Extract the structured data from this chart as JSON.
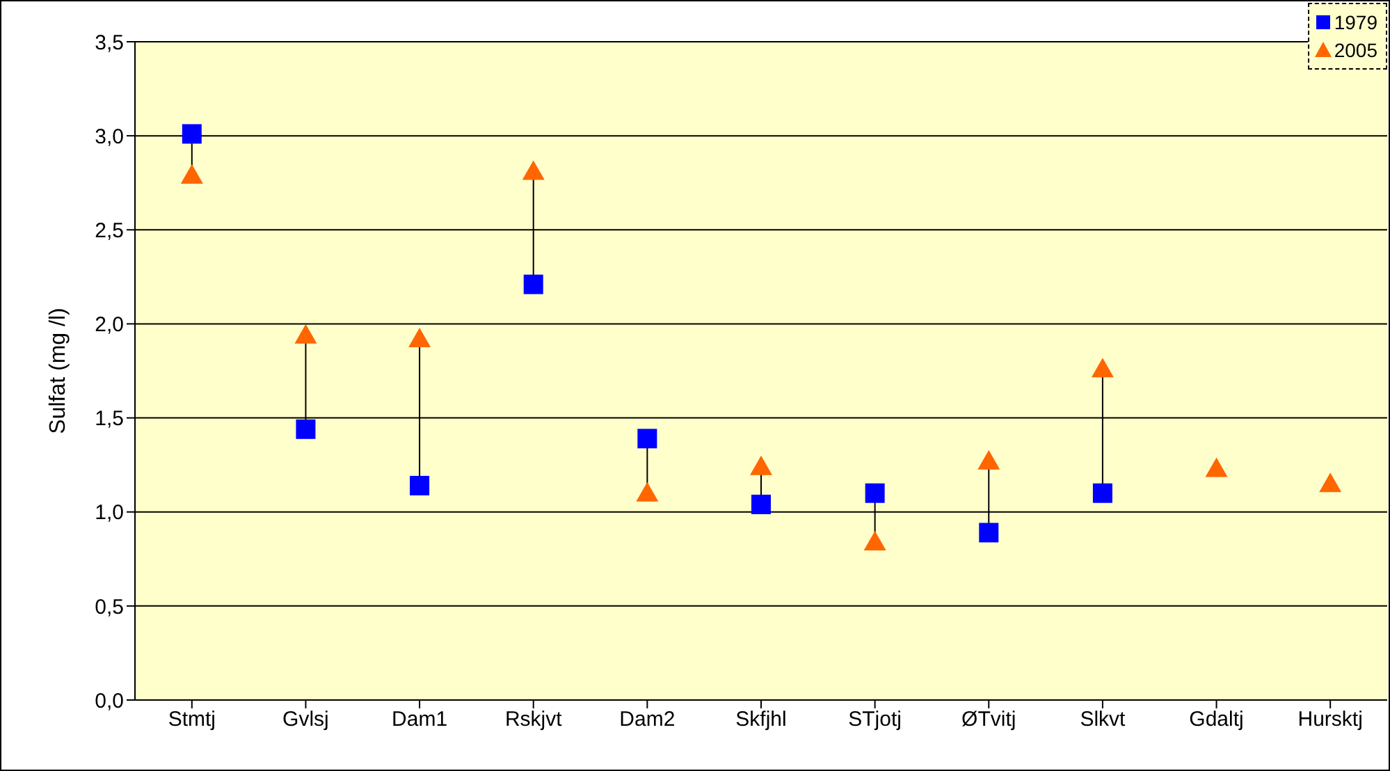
{
  "chart_data": {
    "type": "scatter",
    "ylabel": "Sulfat (mg /l)",
    "categories": [
      "Stmtj",
      "Gvlsj",
      "Dam1",
      "Rskjvt",
      "Dam2",
      "Skfjhl",
      "STjotj",
      "ØTvitj",
      "Slkvt",
      "Gdaltj",
      "Hursktj"
    ],
    "series": [
      {
        "name": "1979",
        "color": "#0000ff",
        "marker": "square",
        "values": [
          3.01,
          1.44,
          1.14,
          2.21,
          1.39,
          1.04,
          1.1,
          0.89,
          1.1,
          null,
          null
        ]
      },
      {
        "name": "2005",
        "color": "#ff6600",
        "marker": "triangle",
        "values": [
          2.79,
          1.94,
          1.92,
          2.81,
          1.1,
          1.24,
          0.84,
          1.27,
          1.76,
          1.23,
          1.15
        ]
      }
    ],
    "ylim": [
      0,
      3.5
    ],
    "yticks": [
      {
        "value": 0,
        "label": "0,0"
      },
      {
        "value": 0.5,
        "label": "0,5"
      },
      {
        "value": 1,
        "label": "1,0"
      },
      {
        "value": 1.5,
        "label": "1,5"
      },
      {
        "value": 2,
        "label": "2,0"
      },
      {
        "value": 2.5,
        "label": "2,5"
      },
      {
        "value": 3,
        "label": "3,0"
      },
      {
        "value": 3.5,
        "label": "3,5"
      }
    ],
    "grid": "y",
    "legend": "top right"
  }
}
